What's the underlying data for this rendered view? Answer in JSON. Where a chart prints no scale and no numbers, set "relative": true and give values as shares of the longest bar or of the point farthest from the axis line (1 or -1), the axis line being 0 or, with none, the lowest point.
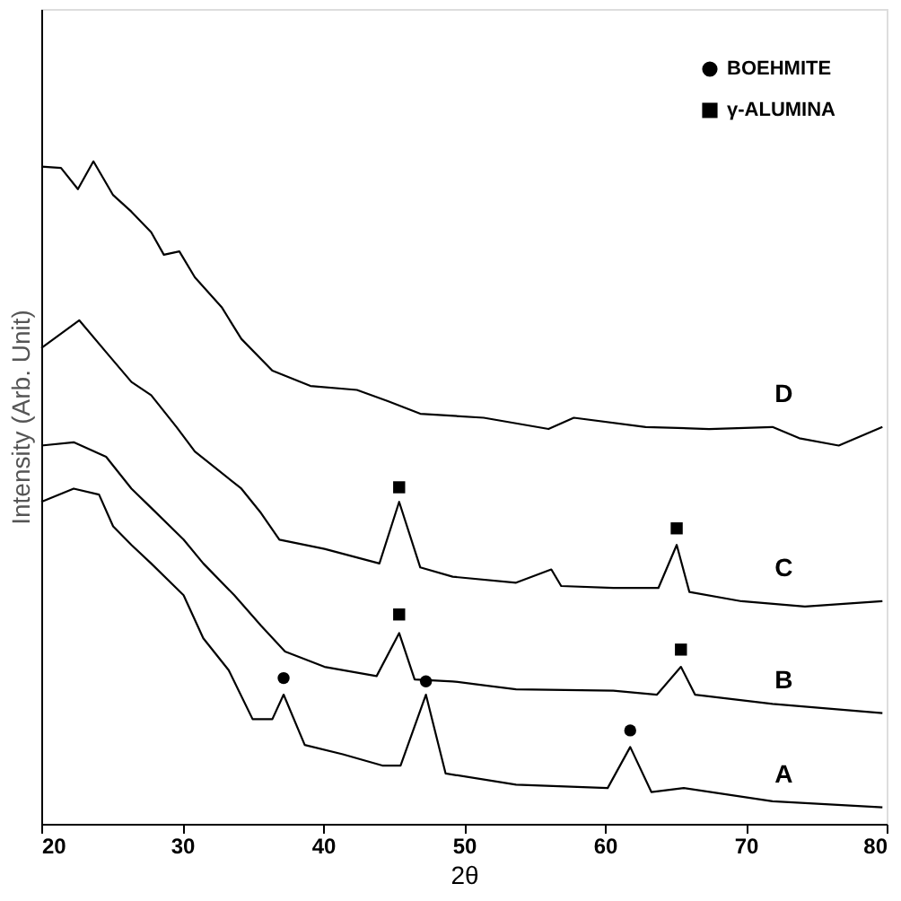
{
  "chart_data": {
    "type": "line",
    "relative": true,
    "xlabel": "2θ",
    "ylabel": "Intensity (Arb. Unit)",
    "xlim": [
      20,
      80
    ],
    "xticks": [
      20,
      30,
      40,
      50,
      60,
      70,
      80
    ],
    "tick_labels": "x",
    "grid": false,
    "legend": "top right",
    "line_style": "solid",
    "series": [
      {
        "name": "D",
        "color": "#000000",
        "x": [
          20.0,
          21.4,
          22.6,
          23.7,
          25.1,
          26.4,
          27.8,
          28.7,
          29.8,
          30.9,
          32.8,
          34.2,
          36.4,
          39.1,
          42.4,
          44.6,
          46.9,
          51.4,
          56.0,
          57.8,
          62.9,
          67.4,
          71.9,
          73.8,
          76.6,
          79.7
        ],
        "values": [
          0.992,
          0.99,
          0.958,
          1.0,
          0.949,
          0.924,
          0.893,
          0.859,
          0.864,
          0.825,
          0.78,
          0.732,
          0.684,
          0.661,
          0.655,
          0.638,
          0.619,
          0.613,
          0.596,
          0.613,
          0.599,
          0.596,
          0.599,
          0.582,
          0.571,
          0.599
        ]
      },
      {
        "name": "C",
        "color": "#000000",
        "x": [
          20.0,
          22.7,
          24.6,
          26.4,
          27.8,
          29.6,
          30.9,
          34.2,
          35.6,
          36.9,
          40.1,
          44.0,
          45.4,
          46.9,
          49.2,
          53.7,
          56.2,
          56.9,
          60.6,
          63.8,
          65.1,
          66.0,
          69.7,
          74.2,
          79.7
        ],
        "values": [
          0.718,
          0.76,
          0.712,
          0.667,
          0.647,
          0.599,
          0.562,
          0.506,
          0.469,
          0.429,
          0.415,
          0.393,
          0.486,
          0.387,
          0.373,
          0.364,
          0.384,
          0.359,
          0.356,
          0.356,
          0.421,
          0.35,
          0.336,
          0.328,
          0.336
        ]
      },
      {
        "name": "B",
        "color": "#000000",
        "x": [
          20.0,
          22.3,
          24.6,
          26.4,
          27.8,
          30.1,
          31.5,
          33.7,
          35.6,
          37.3,
          40.1,
          43.8,
          45.4,
          46.5,
          49.2,
          53.7,
          60.6,
          63.7,
          65.4,
          66.4,
          71.9,
          79.7
        ],
        "values": [
          0.571,
          0.576,
          0.554,
          0.506,
          0.477,
          0.429,
          0.393,
          0.345,
          0.299,
          0.26,
          0.237,
          0.223,
          0.288,
          0.218,
          0.215,
          0.203,
          0.201,
          0.195,
          0.237,
          0.195,
          0.181,
          0.167
        ]
      },
      {
        "name": "A",
        "color": "#000000",
        "x": [
          20.0,
          22.3,
          24.1,
          25.1,
          26.4,
          27.8,
          30.1,
          31.5,
          33.3,
          35.0,
          36.4,
          37.2,
          38.7,
          41.4,
          44.2,
          45.5,
          47.3,
          48.7,
          53.7,
          60.2,
          61.8,
          63.3,
          65.6,
          71.9,
          79.7
        ],
        "values": [
          0.486,
          0.506,
          0.497,
          0.449,
          0.421,
          0.393,
          0.345,
          0.28,
          0.232,
          0.158,
          0.158,
          0.195,
          0.119,
          0.105,
          0.088,
          0.088,
          0.195,
          0.076,
          0.059,
          0.054,
          0.116,
          0.048,
          0.054,
          0.034,
          0.025
        ]
      },
      {
        "type": "scatter",
        "name": "BOEHMITE",
        "marker": "circle",
        "color": "#000000",
        "x": [
          37.2,
          47.3,
          61.8
        ],
        "values": [
          0.22,
          0.215,
          0.141
        ]
      },
      {
        "type": "scatter",
        "name": "γ-ALUMINA",
        "marker": "square",
        "color": "#000000",
        "x": [
          45.4,
          65.1,
          45.4,
          65.4
        ],
        "values": [
          0.508,
          0.446,
          0.316,
          0.263
        ]
      }
    ]
  }
}
